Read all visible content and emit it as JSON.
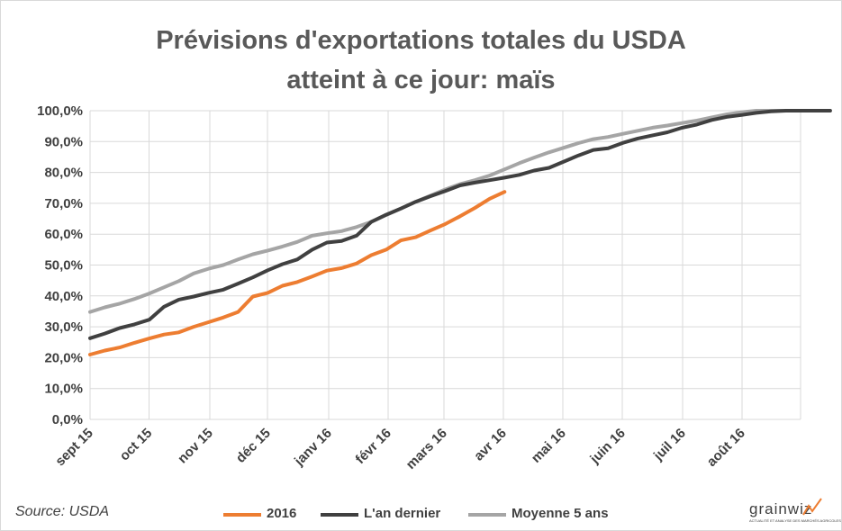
{
  "chart_data": {
    "type": "line",
    "title_line1": "Prévisions d'exportations totales du USDA",
    "title_line2": "atteint à ce jour: maïs",
    "y_ticks": [
      "0,0%",
      "10,0%",
      "20,0%",
      "30,0%",
      "40,0%",
      "50,0%",
      "60,0%",
      "70,0%",
      "80,0%",
      "90,0%",
      "100,0%"
    ],
    "ylim": [
      0,
      100
    ],
    "x_ticks": [
      "sept 15",
      "oct 15",
      "nov 15",
      "déc 15",
      "janv 16",
      "févr 16",
      "mars 16",
      "avr 16",
      "mai 16",
      "juin 16",
      "juil 16",
      "août 16"
    ],
    "x_unit": "week",
    "x_range": [
      0,
      48
    ],
    "grid": "horizontal and vertical",
    "legend_position": "bottom",
    "series": [
      {
        "name": "2016",
        "color": "#ED7D31",
        "values": [
          21,
          22.3,
          23.3,
          24.8,
          26.2,
          27.5,
          28.2,
          30,
          31.5,
          33,
          34.8,
          39.8,
          41,
          43.3,
          44.5,
          46.3,
          48.2,
          49,
          50.5,
          53.2,
          55,
          58,
          59,
          61.2,
          63.3,
          65.8,
          68.5,
          71.5,
          73.7
        ]
      },
      {
        "name": "L'an dernier",
        "color": "#404040",
        "values": [
          26.3,
          27.8,
          29.6,
          30.8,
          32.3,
          36.5,
          38.8,
          39.8,
          41,
          42,
          44,
          46,
          48.3,
          50.3,
          51.8,
          55,
          57.3,
          57.8,
          59.5,
          64,
          66.3,
          68.3,
          70.5,
          72.3,
          74,
          75.8,
          76.7,
          77.5,
          78.3,
          79.2,
          80.6,
          81.5,
          83.5,
          85.5,
          87.3,
          87.8,
          89.6,
          91,
          92,
          93,
          94.5,
          95.5,
          97,
          98,
          98.6,
          99.3,
          99.8,
          100,
          100,
          100,
          100
        ]
      },
      {
        "name": "Moyenne 5 ans",
        "color": "#A5A5A5",
        "values": [
          34.8,
          36.3,
          37.5,
          39,
          40.8,
          42.8,
          44.8,
          47.3,
          48.8,
          50,
          51.8,
          53.5,
          54.7,
          56,
          57.5,
          59.5,
          60.3,
          61,
          62.3,
          64,
          66.2,
          68.3,
          70.5,
          72.5,
          74.5,
          76.2,
          77.5,
          79,
          81,
          83,
          84.8,
          86.5,
          88,
          89.5,
          90.8,
          91.5,
          92.5,
          93.5,
          94.5,
          95.2,
          96,
          96.8,
          97.8,
          98.8,
          99.5,
          100,
          100,
          100,
          100
        ]
      }
    ]
  },
  "source": "Source: USDA",
  "logo": {
    "word": "grainwiz",
    "tagline": "ACTUALITÉ ET ANALYSE DES MARCHÉS AGRICOLES"
  }
}
